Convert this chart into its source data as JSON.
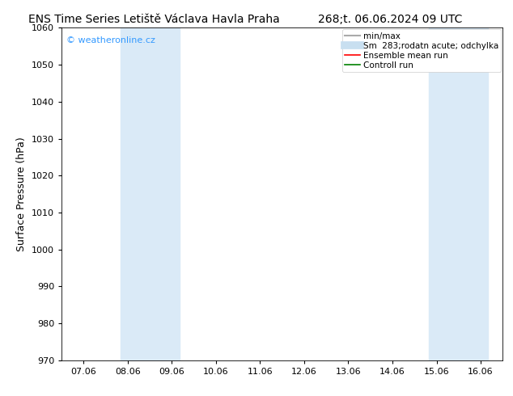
{
  "title_left": "ENS Time Series Letiště Václava Havla Praha",
  "title_right": "268;t. 06.06.2024 09 UTC",
  "ylabel": "Surface Pressure (hPa)",
  "ylim": [
    970,
    1060
  ],
  "yticks": [
    970,
    980,
    990,
    1000,
    1010,
    1020,
    1030,
    1040,
    1050,
    1060
  ],
  "xtick_labels": [
    "07.06",
    "08.06",
    "09.06",
    "10.06",
    "11.06",
    "12.06",
    "13.06",
    "14.06",
    "15.06",
    "16.06"
  ],
  "xtick_positions": [
    0,
    1,
    2,
    3,
    4,
    5,
    6,
    7,
    8,
    9
  ],
  "xlim": [
    -0.5,
    9.5
  ],
  "background_color": "#ffffff",
  "plot_bg_color": "#ffffff",
  "shaded_regions": [
    {
      "x_start": 0.83,
      "x_end": 2.17,
      "color": "#daeaf7"
    },
    {
      "x_start": 7.83,
      "x_end": 9.17,
      "color": "#daeaf7"
    }
  ],
  "watermark_text": "© weatheronline.cz",
  "watermark_color": "#3399ff",
  "legend_entries": [
    {
      "label": "min/max",
      "color": "#aaaaaa",
      "lw": 1.5
    },
    {
      "label": "Sm  283;rodatn acute; odchylka",
      "color": "#c8dff0",
      "lw": 7
    },
    {
      "label": "Ensemble mean run",
      "color": "#ff0000",
      "lw": 1.2
    },
    {
      "label": "Controll run",
      "color": "#008000",
      "lw": 1.2
    }
  ],
  "title_fontsize": 10,
  "axis_fontsize": 9,
  "tick_fontsize": 8,
  "legend_fontsize": 7.5
}
